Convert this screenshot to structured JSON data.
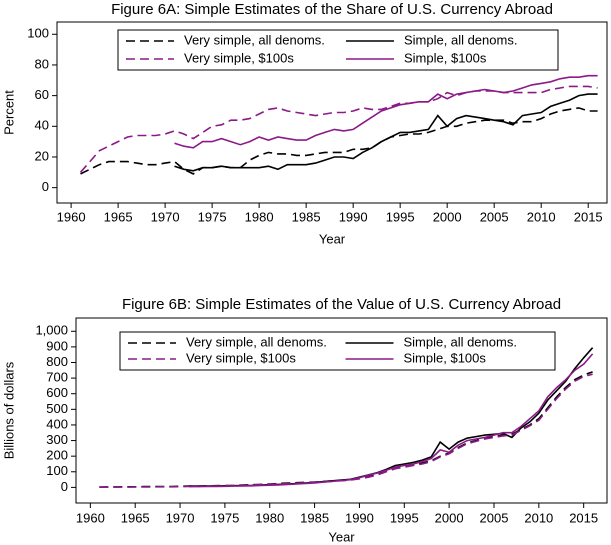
{
  "chart_data": [
    {
      "type": "line",
      "title": "Figure 6A: Simple Estimates of the Share of U.S. Currency Abroad",
      "xlabel": "Year",
      "ylabel": "Percent",
      "x": [
        1961,
        1962,
        1963,
        1964,
        1965,
        1966,
        1967,
        1968,
        1969,
        1970,
        1971,
        1972,
        1973,
        1974,
        1975,
        1976,
        1977,
        1978,
        1979,
        1980,
        1981,
        1982,
        1983,
        1984,
        1985,
        1986,
        1987,
        1988,
        1989,
        1990,
        1991,
        1992,
        1993,
        1994,
        1995,
        1996,
        1997,
        1998,
        1999,
        2000,
        2001,
        2002,
        2003,
        2004,
        2005,
        2006,
        2007,
        2008,
        2009,
        2010,
        2011,
        2012,
        2013,
        2014,
        2015,
        2016
      ],
      "xlim": [
        1958.5,
        2017
      ],
      "xticks": [
        1960,
        1965,
        1970,
        1975,
        1980,
        1985,
        1990,
        1995,
        2000,
        2005,
        2010,
        2015
      ],
      "ylim": [
        -10,
        108
      ],
      "yticks": [
        0,
        20,
        40,
        60,
        80,
        100
      ],
      "legend_position": "top",
      "series": [
        {
          "name": "Very simple, all denoms.",
          "color": "#000000",
          "dashed": true,
          "values": [
            9,
            12,
            15,
            17,
            17,
            17,
            16,
            15,
            15,
            16,
            17,
            12,
            9,
            13,
            13,
            14,
            13,
            13,
            18,
            21,
            23,
            22,
            22,
            21,
            21,
            22,
            23,
            23,
            23,
            25,
            25,
            26,
            30,
            33,
            34,
            35,
            35,
            36,
            38,
            40,
            40,
            42,
            43,
            44,
            44,
            44,
            42,
            43,
            43,
            45,
            48,
            50,
            51,
            52,
            50,
            50
          ]
        },
        {
          "name": "Simple, all denoms.",
          "color": "#000000",
          "dashed": false,
          "values": [
            null,
            null,
            null,
            null,
            null,
            null,
            null,
            null,
            null,
            null,
            14,
            12,
            11,
            13,
            13,
            14,
            13,
            13,
            13,
            13,
            14,
            12,
            15,
            15,
            15,
            16,
            18,
            20,
            20,
            19,
            23,
            26,
            30,
            33,
            36,
            36,
            37,
            38,
            47,
            40,
            45,
            47,
            46,
            45,
            44,
            43,
            41,
            47,
            48,
            49,
            53,
            55,
            57,
            60,
            61,
            61
          ]
        },
        {
          "name": "Very simple, $100s",
          "color": "#8b1a89",
          "dashed": true,
          "values": [
            10,
            17,
            24,
            27,
            30,
            33,
            34,
            34,
            34,
            35,
            37,
            35,
            32,
            36,
            40,
            41,
            44,
            44,
            45,
            48,
            51,
            52,
            50,
            49,
            48,
            47,
            48,
            49,
            49,
            50,
            52,
            51,
            51,
            53,
            55,
            55,
            56,
            56,
            58,
            62,
            60,
            62,
            63,
            63,
            63,
            62,
            62,
            62,
            62,
            62,
            64,
            65,
            66,
            66,
            66,
            65
          ]
        },
        {
          "name": "Simple, $100s",
          "color": "#8b1a89",
          "dashed": false,
          "values": [
            null,
            null,
            null,
            null,
            null,
            null,
            null,
            null,
            null,
            null,
            29,
            27,
            26,
            30,
            30,
            32,
            30,
            28,
            30,
            33,
            31,
            33,
            32,
            31,
            31,
            34,
            36,
            38,
            37,
            38,
            42,
            46,
            50,
            52,
            54,
            55,
            56,
            56,
            61,
            58,
            61,
            62,
            63,
            64,
            63,
            62,
            63,
            65,
            67,
            68,
            69,
            71,
            72,
            72,
            73,
            73
          ]
        }
      ]
    },
    {
      "type": "line",
      "title": "Figure 6B: Simple Estimates of the Value of U.S. Currency Abroad",
      "xlabel": "Year",
      "ylabel": "Billions of dollars",
      "x": [
        1961,
        1962,
        1963,
        1964,
        1965,
        1966,
        1967,
        1968,
        1969,
        1970,
        1971,
        1972,
        1973,
        1974,
        1975,
        1976,
        1977,
        1978,
        1979,
        1980,
        1981,
        1982,
        1983,
        1984,
        1985,
        1986,
        1987,
        1988,
        1989,
        1990,
        1991,
        1992,
        1993,
        1994,
        1995,
        1996,
        1997,
        1998,
        1999,
        2000,
        2001,
        2002,
        2003,
        2004,
        2005,
        2006,
        2007,
        2008,
        2009,
        2010,
        2011,
        2012,
        2013,
        2014,
        2015,
        2016
      ],
      "xlim": [
        1958.4,
        2017.6
      ],
      "xticks": [
        1960,
        1965,
        1970,
        1975,
        1980,
        1985,
        1990,
        1995,
        2000,
        2005,
        2010,
        2015
      ],
      "ylim": [
        -100,
        1085
      ],
      "yticks": [
        0,
        100,
        200,
        300,
        400,
        500,
        600,
        700,
        800,
        900,
        {
          "value": 1000,
          "label": "1,000"
        }
      ],
      "legend_position": "top",
      "series": [
        {
          "name": "Very simple, all denoms.",
          "color": "#000000",
          "dashed": true,
          "values": [
            2,
            3,
            3,
            4,
            4,
            5,
            5,
            6,
            6,
            7,
            8,
            9,
            10,
            11,
            12,
            13,
            15,
            17,
            19,
            22,
            25,
            28,
            30,
            32,
            34,
            38,
            42,
            46,
            50,
            60,
            70,
            85,
            105,
            125,
            135,
            145,
            155,
            170,
            200,
            220,
            255,
            285,
            300,
            315,
            325,
            335,
            340,
            370,
            400,
            440,
            510,
            580,
            640,
            690,
            720,
            740
          ]
        },
        {
          "name": "Simple, all denoms.",
          "color": "#000000",
          "dashed": false,
          "values": [
            null,
            null,
            null,
            null,
            null,
            null,
            null,
            null,
            null,
            null,
            8,
            8,
            8,
            9,
            10,
            11,
            12,
            13,
            15,
            17,
            19,
            22,
            25,
            28,
            32,
            37,
            42,
            47,
            52,
            65,
            80,
            95,
            115,
            140,
            150,
            160,
            175,
            195,
            290,
            245,
            290,
            315,
            325,
            335,
            340,
            345,
            320,
            380,
            420,
            475,
            560,
            620,
            680,
            760,
            830,
            895
          ]
        },
        {
          "name": "Very simple, $100s",
          "color": "#8b1a89",
          "dashed": true,
          "values": [
            1,
            2,
            2,
            2,
            3,
            3,
            3,
            4,
            4,
            5,
            6,
            7,
            8,
            9,
            10,
            11,
            13,
            15,
            17,
            19,
            22,
            24,
            27,
            29,
            32,
            35,
            39,
            43,
            47,
            55,
            65,
            80,
            100,
            120,
            130,
            140,
            150,
            165,
            195,
            215,
            250,
            280,
            295,
            310,
            320,
            330,
            335,
            365,
            395,
            430,
            500,
            570,
            630,
            680,
            710,
            725
          ]
        },
        {
          "name": "Simple, $100s",
          "color": "#8b1a89",
          "dashed": false,
          "values": [
            null,
            null,
            null,
            null,
            null,
            null,
            null,
            null,
            null,
            null,
            5,
            5,
            6,
            6,
            7,
            8,
            9,
            10,
            12,
            14,
            16,
            19,
            22,
            25,
            29,
            34,
            39,
            44,
            49,
            62,
            78,
            92,
            110,
            130,
            140,
            150,
            165,
            185,
            240,
            225,
            270,
            300,
            310,
            320,
            335,
            350,
            350,
            390,
            440,
            490,
            580,
            640,
            690,
            750,
            790,
            855
          ]
        }
      ]
    }
  ]
}
